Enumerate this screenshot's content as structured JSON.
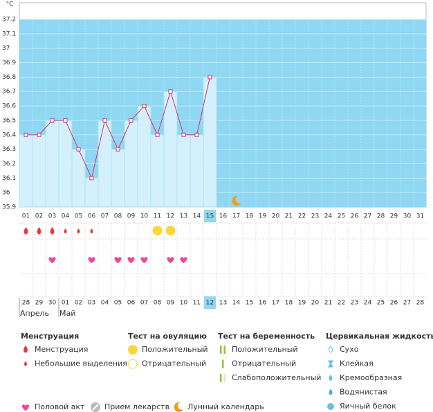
{
  "chart_data": {
    "type": "line",
    "y_unit": "°C",
    "categories": [
      "01",
      "02",
      "03",
      "04",
      "05",
      "06",
      "07",
      "08",
      "09",
      "10",
      "11",
      "12",
      "13",
      "14",
      "15",
      "16",
      "17",
      "18",
      "19",
      "20",
      "21",
      "22",
      "23",
      "24",
      "25",
      "26",
      "27",
      "28",
      "29",
      "30",
      "31"
    ],
    "values": [
      36.4,
      36.4,
      36.5,
      36.5,
      36.3,
      36.1,
      36.5,
      36.3,
      36.5,
      36.6,
      36.4,
      36.7,
      36.4,
      36.4,
      36.8,
      null,
      null,
      null,
      null,
      null,
      null,
      null,
      null,
      null,
      null,
      null,
      null,
      null,
      null,
      null,
      null
    ],
    "ylim": [
      35.9,
      37.2
    ],
    "yticks": [
      35.9,
      36,
      36.1,
      36.2,
      36.3,
      36.4,
      36.5,
      36.6,
      36.7,
      36.8,
      36.9,
      37,
      37.1,
      37.2
    ],
    "color": "#d6336c",
    "grid": true,
    "highlight": "15"
  },
  "cycle": {
    "dates": [
      {
        "label": "28"
      },
      {
        "label": "29"
      },
      {
        "label": "30",
        "weekend": true
      },
      {
        "label": "01",
        "weekend": true
      },
      {
        "label": "02"
      },
      {
        "label": "03"
      },
      {
        "label": "04"
      },
      {
        "label": "05"
      },
      {
        "label": "06"
      },
      {
        "label": "07",
        "weekend": true
      },
      {
        "label": "08",
        "weekend": true
      },
      {
        "label": "09"
      },
      {
        "label": "10"
      },
      {
        "label": "11"
      },
      {
        "label": "12"
      },
      {
        "label": "13"
      },
      {
        "label": "14",
        "weekend": true
      },
      {
        "label": "15",
        "weekend": true
      },
      {
        "label": "16"
      },
      {
        "label": "17"
      },
      {
        "label": "18"
      },
      {
        "label": "19"
      },
      {
        "label": "20"
      },
      {
        "label": "21",
        "weekend": true
      },
      {
        "label": "22",
        "weekend": true
      },
      {
        "label": "23"
      },
      {
        "label": "24"
      },
      {
        "label": "25"
      },
      {
        "label": "26"
      },
      {
        "label": "27"
      },
      {
        "label": "28",
        "weekend": true
      }
    ],
    "months": [
      {
        "label": "Апрель",
        "from": "28"
      },
      {
        "label": "Май",
        "from": "01"
      }
    ],
    "highlight": "12",
    "menstruation": [
      "01",
      "02",
      "03"
    ],
    "spotting": [
      "04",
      "05",
      "06"
    ],
    "ovulation_positive": [
      "11",
      "12"
    ],
    "intercourse": [
      "03",
      "06",
      "08",
      "09",
      "10",
      "12",
      "13"
    ],
    "moon": [
      "17"
    ]
  },
  "legend": {
    "sections": [
      {
        "title": "Менструация",
        "items": [
          "Менструация",
          "Небольшие выделения"
        ]
      },
      {
        "title": "Тест на овуляцию",
        "items": [
          "Положительный",
          "Отрицательный"
        ]
      },
      {
        "title": "Тест на беременность",
        "items": [
          "Положительный",
          "Отрицательный",
          "Слабоположительный"
        ]
      },
      {
        "title": "Цервикальная жидкость",
        "items": [
          "Сухо",
          "Клейкая",
          "Кремообразная",
          "Водянистая",
          "Яичный белок"
        ]
      }
    ],
    "footer": [
      "Половой акт",
      "Прием лекарств",
      "Лунный календарь"
    ]
  }
}
